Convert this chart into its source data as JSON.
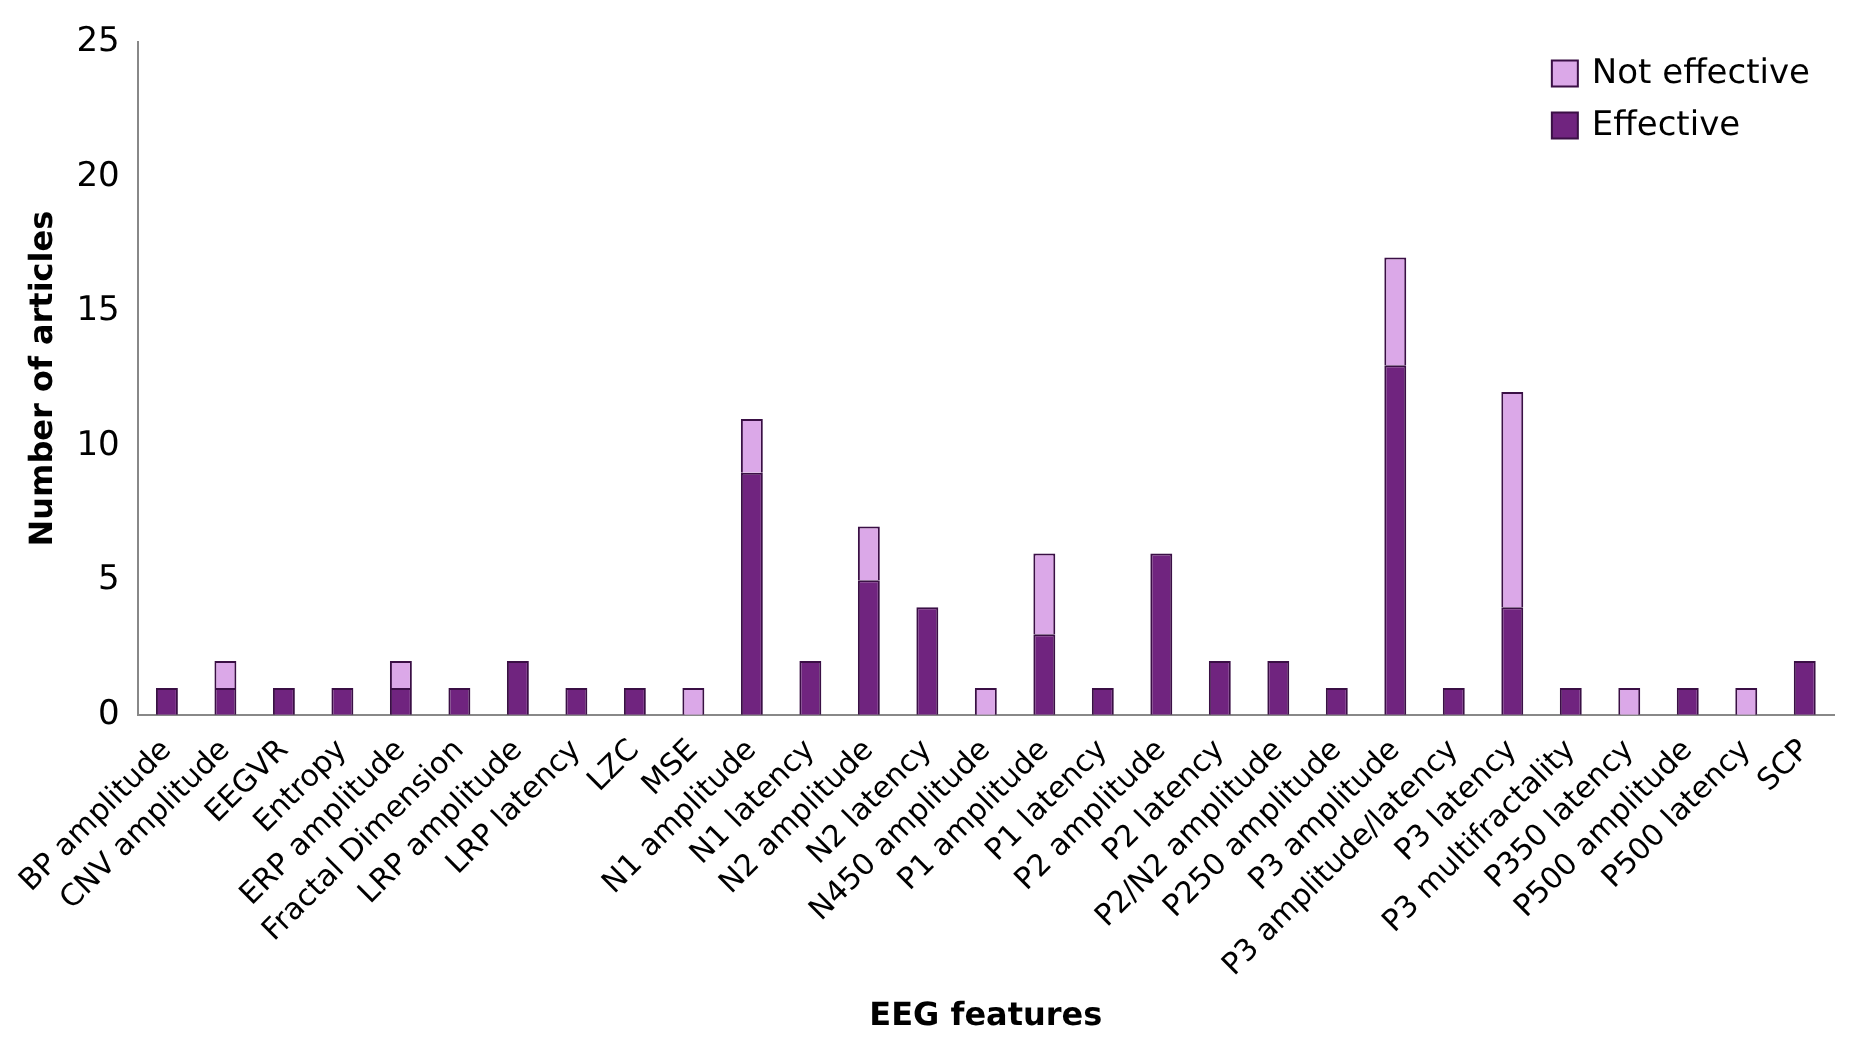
{
  "chart_data": {
    "type": "bar",
    "xlabel": "EEG features",
    "ylabel": "Number of articles",
    "categories": [
      "BP amplitude",
      "CNV amplitude",
      "EEGVR",
      "Entropy",
      "ERP amplitude",
      "Fractal Dimension",
      "LRP amplitude",
      "LRP latency",
      "LZC",
      "MSE",
      "N1 amplitude",
      "N1 latency",
      "N2 amplitude",
      "N2 latency",
      "N450 amplitude",
      "P1 amplitude",
      "P1 latency",
      "P2 amplitude",
      "P2 latency",
      "P2/N2 amplitude",
      "P250 amplitude",
      "P3 amplitude",
      "P3 amplitude/latency",
      "P3 latency",
      "P3 multifractality",
      "P350 latency",
      "P500 amplitude",
      "P500 latency",
      "SCP"
    ],
    "series": [
      {
        "name": "Effective",
        "color": "#70247f",
        "values": [
          1,
          1,
          1,
          1,
          1,
          1,
          2,
          1,
          1,
          0,
          9,
          2,
          5,
          4,
          0,
          3,
          1,
          6,
          2,
          2,
          1,
          13,
          1,
          4,
          1,
          0,
          1,
          0,
          2
        ]
      },
      {
        "name": "Not effective",
        "color": "#dba8e8",
        "values": [
          0,
          1,
          0,
          0,
          1,
          0,
          0,
          0,
          0,
          1,
          2,
          0,
          2,
          0,
          1,
          3,
          0,
          0,
          0,
          0,
          0,
          4,
          0,
          8,
          0,
          1,
          0,
          1,
          0
        ]
      }
    ],
    "stacked": true,
    "ylim": [
      0,
      25
    ],
    "yticks": [
      0,
      5,
      10,
      15,
      20,
      25
    ],
    "grid": false,
    "legend": "top right"
  }
}
